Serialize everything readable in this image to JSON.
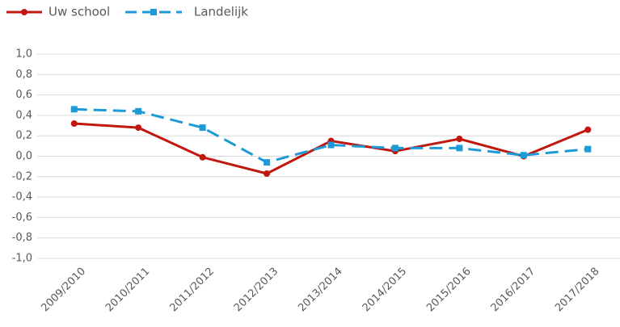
{
  "chart_data": {
    "type": "line",
    "categories": [
      "2009/2010",
      "2010/2011",
      "2011/2012",
      "2012/2013",
      "2013/2014",
      "2014/2015",
      "2015/2016",
      "2016/2017",
      "2017/2018"
    ],
    "series": [
      {
        "name": "Uw school",
        "color": "#c0170f",
        "values": [
          0.32,
          0.28,
          -0.01,
          -0.17,
          0.15,
          0.05,
          0.17,
          0.0,
          0.26
        ]
      },
      {
        "name": "Landelijk",
        "color": "#1e9bd7",
        "values": [
          0.46,
          0.44,
          0.28,
          -0.06,
          0.11,
          0.08,
          0.08,
          0.01,
          0.07
        ]
      }
    ],
    "ylim": [
      -1.0,
      1.0
    ],
    "yticks": [
      {
        "value": -1.0,
        "label": "-1,0"
      },
      {
        "value": -0.8,
        "label": "-0,8"
      },
      {
        "value": -0.6,
        "label": "-0,6"
      },
      {
        "value": -0.4,
        "label": "-0,4"
      },
      {
        "value": -0.2,
        "label": "-0,2"
      },
      {
        "value": 0.0,
        "label": "0,0"
      },
      {
        "value": 0.2,
        "label": "0,2"
      },
      {
        "value": 0.4,
        "label": "0,4"
      },
      {
        "value": 0.6,
        "label": "0,6"
      },
      {
        "value": 0.8,
        "label": "0,8"
      },
      {
        "value": 1.0,
        "label": "1,0"
      }
    ],
    "grid": true
  }
}
